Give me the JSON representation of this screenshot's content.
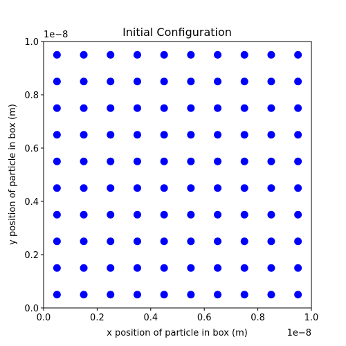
{
  "chart_data": {
    "type": "scatter",
    "title": "Initial Configuration",
    "xlabel": "x position of particle in box (m)",
    "ylabel": "y position of particle in box (m)",
    "xlim": [
      0,
      1e-08
    ],
    "ylim": [
      0,
      1e-08
    ],
    "offset_label_x": "1e−8",
    "offset_label_y": "1e−8",
    "xticks": [
      "0.0",
      "0.2",
      "0.4",
      "0.6",
      "0.8",
      "1.0"
    ],
    "yticks": [
      "0.0",
      "0.2",
      "0.4",
      "0.6",
      "0.8",
      "1.0"
    ],
    "grid": false,
    "marker_color": "#0000ff",
    "grid_x": [
      5e-10,
      1.5e-09,
      2.5e-09,
      3.5e-09,
      4.5e-09,
      5.5e-09,
      6.5e-09,
      7.5e-09,
      8.5e-09,
      9.5e-09
    ],
    "grid_y": [
      5e-10,
      1.5e-09,
      2.5e-09,
      3.5e-09,
      4.5e-09,
      5.5e-09,
      6.5e-09,
      7.5e-09,
      8.5e-09,
      9.5e-09
    ]
  }
}
